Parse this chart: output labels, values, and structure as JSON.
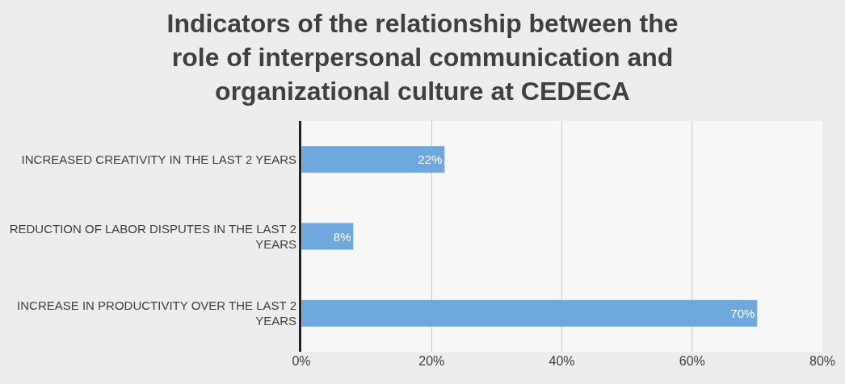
{
  "chart_data": {
    "type": "bar",
    "orientation": "horizontal",
    "title": "Indicators of the relationship between the role of interpersonal communication and organizational culture at CEDECA",
    "categories": [
      "INCREASED CREATIVITY IN THE LAST 2 YEARS",
      "REDUCTION OF LABOR DISPUTES IN THE LAST 2 YEARS",
      "INCREASE IN PRODUCTIVITY OVER THE LAST 2 YEARS"
    ],
    "values": [
      22,
      8,
      70
    ],
    "value_labels": [
      "22%",
      "8%",
      "70%"
    ],
    "color": "#6fa8dc",
    "xlim": [
      0,
      80
    ],
    "xticks": [
      {
        "value": 0,
        "label": "0%"
      },
      {
        "value": 20,
        "label": "20%"
      },
      {
        "value": 40,
        "label": "40%"
      },
      {
        "value": 60,
        "label": "60%"
      },
      {
        "value": 80,
        "label": "80%"
      }
    ],
    "grid": "x"
  }
}
